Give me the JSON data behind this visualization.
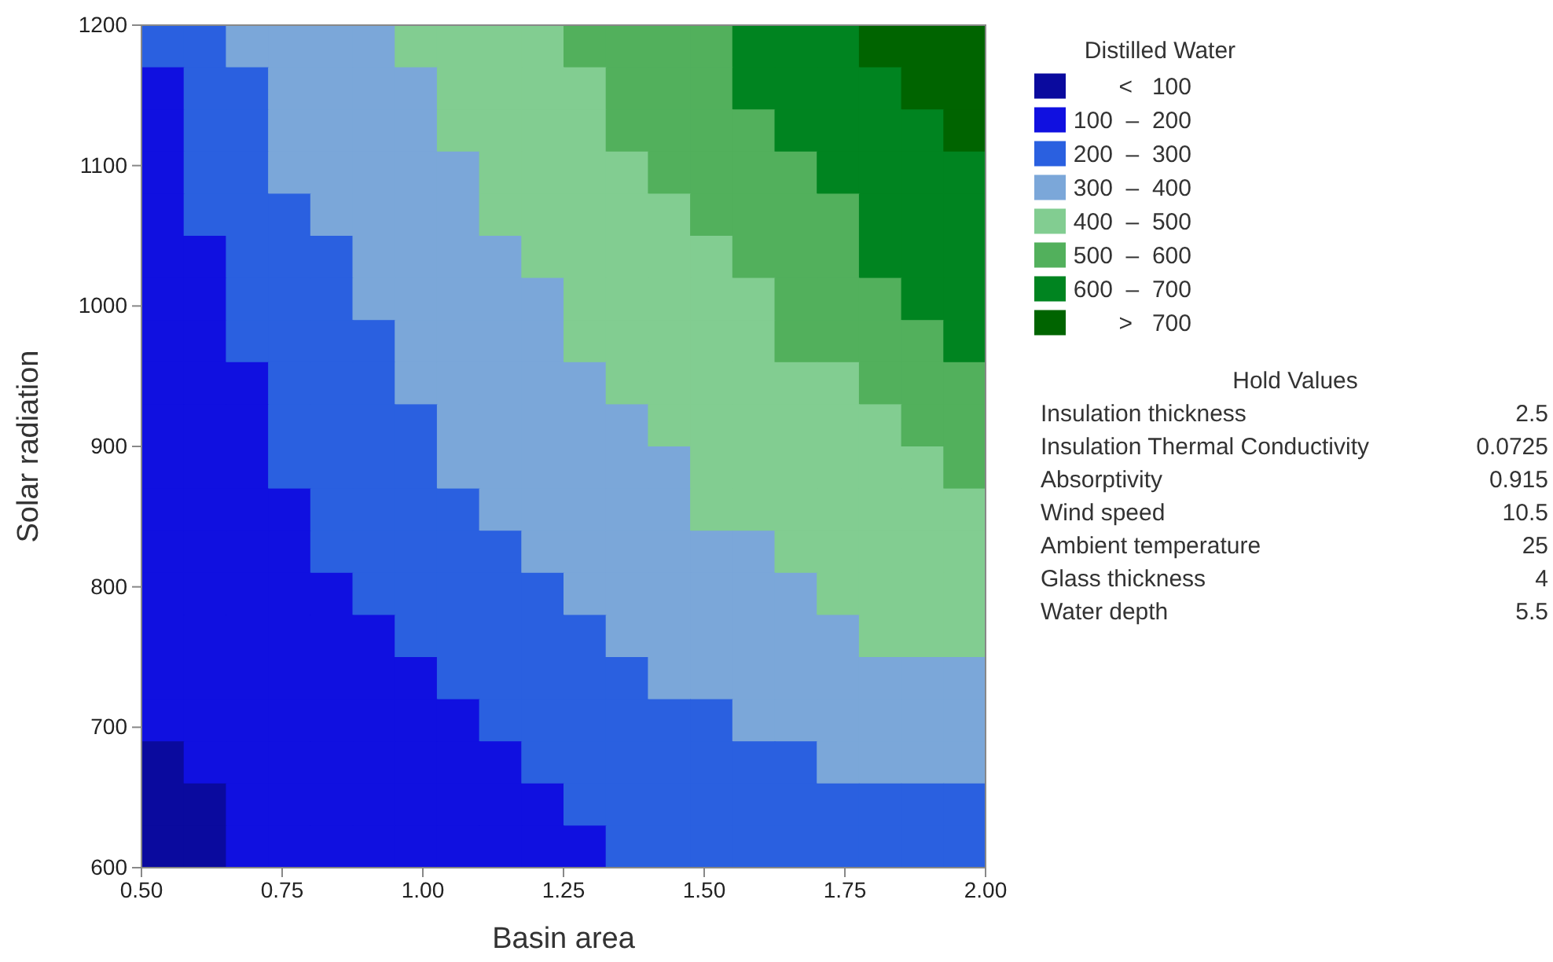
{
  "chart_data": {
    "type": "heatmap",
    "xlabel": "Basin area",
    "ylabel": "Solar radiation",
    "legend_title": "Distilled Water",
    "xlim": [
      0.5,
      2.0
    ],
    "xticks": [
      {
        "value": 0.5,
        "label": "0.50"
      },
      {
        "value": 0.75,
        "label": "0.75"
      },
      {
        "value": 1.0,
        "label": "1.00"
      },
      {
        "value": 1.25,
        "label": "1.25"
      },
      {
        "value": 1.5,
        "label": "1.50"
      },
      {
        "value": 1.75,
        "label": "1.75"
      },
      {
        "value": 2.0,
        "label": "2.00"
      }
    ],
    "ylim": [
      600,
      1200
    ],
    "yticks": [
      600,
      700,
      800,
      900,
      1000,
      1100,
      1200
    ],
    "clim": [
      0,
      800
    ],
    "cticks": [
      {
        "value": 50,
        "label": "<   100"
      },
      {
        "value": 150,
        "label": "100  –  200"
      },
      {
        "value": 250,
        "label": "200  –  300"
      },
      {
        "value": 350,
        "label": "300  –  400"
      },
      {
        "value": 450,
        "label": "400  –  500"
      },
      {
        "value": 550,
        "label": "500  –  600"
      },
      {
        "value": 650,
        "label": "600  –  700"
      },
      {
        "value": 750,
        "label": ">   700"
      }
    ],
    "colors": [
      "#0a0a9e",
      "#1010e0",
      "#2a60e0",
      "#7ba7d9",
      "#82cd91",
      "#52b05c",
      "#008420",
      "#006400"
    ],
    "cells": [
      [
        250,
        250,
        350,
        350,
        350,
        350,
        450,
        450,
        450,
        450,
        550,
        550,
        550,
        550,
        650,
        650,
        650,
        750,
        750,
        750
      ],
      [
        150,
        250,
        250,
        350,
        350,
        350,
        350,
        450,
        450,
        450,
        450,
        550,
        550,
        550,
        650,
        650,
        650,
        650,
        750,
        750
      ],
      [
        150,
        250,
        250,
        350,
        350,
        350,
        350,
        450,
        450,
        450,
        450,
        550,
        550,
        550,
        550,
        650,
        650,
        650,
        650,
        750
      ],
      [
        150,
        250,
        250,
        350,
        350,
        350,
        350,
        350,
        450,
        450,
        450,
        450,
        550,
        550,
        550,
        550,
        650,
        650,
        650,
        650
      ],
      [
        150,
        250,
        250,
        250,
        350,
        350,
        350,
        350,
        450,
        450,
        450,
        450,
        450,
        550,
        550,
        550,
        550,
        650,
        650,
        650
      ],
      [
        150,
        150,
        250,
        250,
        250,
        350,
        350,
        350,
        350,
        450,
        450,
        450,
        450,
        450,
        550,
        550,
        550,
        650,
        650,
        650
      ],
      [
        150,
        150,
        250,
        250,
        250,
        350,
        350,
        350,
        350,
        350,
        450,
        450,
        450,
        450,
        450,
        550,
        550,
        550,
        650,
        650
      ],
      [
        150,
        150,
        250,
        250,
        250,
        250,
        350,
        350,
        350,
        350,
        450,
        450,
        450,
        450,
        450,
        550,
        550,
        550,
        550,
        650
      ],
      [
        150,
        150,
        150,
        250,
        250,
        250,
        350,
        350,
        350,
        350,
        350,
        450,
        450,
        450,
        450,
        450,
        450,
        550,
        550,
        550
      ],
      [
        150,
        150,
        150,
        250,
        250,
        250,
        250,
        350,
        350,
        350,
        350,
        350,
        450,
        450,
        450,
        450,
        450,
        450,
        550,
        550
      ],
      [
        150,
        150,
        150,
        250,
        250,
        250,
        250,
        350,
        350,
        350,
        350,
        350,
        350,
        450,
        450,
        450,
        450,
        450,
        450,
        550
      ],
      [
        150,
        150,
        150,
        150,
        250,
        250,
        250,
        250,
        350,
        350,
        350,
        350,
        350,
        450,
        450,
        450,
        450,
        450,
        450,
        450
      ],
      [
        150,
        150,
        150,
        150,
        250,
        250,
        250,
        250,
        250,
        350,
        350,
        350,
        350,
        350,
        350,
        450,
        450,
        450,
        450,
        450
      ],
      [
        150,
        150,
        150,
        150,
        150,
        250,
        250,
        250,
        250,
        250,
        350,
        350,
        350,
        350,
        350,
        350,
        450,
        450,
        450,
        450
      ],
      [
        150,
        150,
        150,
        150,
        150,
        150,
        250,
        250,
        250,
        250,
        250,
        350,
        350,
        350,
        350,
        350,
        350,
        450,
        450,
        450
      ],
      [
        150,
        150,
        150,
        150,
        150,
        150,
        150,
        250,
        250,
        250,
        250,
        250,
        350,
        350,
        350,
        350,
        350,
        350,
        350,
        350
      ],
      [
        150,
        150,
        150,
        150,
        150,
        150,
        150,
        150,
        250,
        250,
        250,
        250,
        250,
        250,
        350,
        350,
        350,
        350,
        350,
        350
      ],
      [
        50,
        150,
        150,
        150,
        150,
        150,
        150,
        150,
        150,
        250,
        250,
        250,
        250,
        250,
        250,
        250,
        350,
        350,
        350,
        350
      ],
      [
        50,
        50,
        150,
        150,
        150,
        150,
        150,
        150,
        150,
        150,
        250,
        250,
        250,
        250,
        250,
        250,
        250,
        250,
        250,
        250
      ],
      [
        50,
        50,
        150,
        150,
        150,
        150,
        150,
        150,
        150,
        150,
        150,
        250,
        250,
        250,
        250,
        250,
        250,
        250,
        250,
        250
      ]
    ],
    "annotations": [
      "Hold Values",
      "Insulation thickness",
      "2.5",
      "Insulation Thermal Conductivity",
      "0.0725",
      "Absorptivity",
      "0.915",
      "Wind speed",
      "10.5",
      "Ambient temperature",
      "25",
      "Glass thickness",
      "4",
      "Water depth",
      "5.5"
    ]
  }
}
